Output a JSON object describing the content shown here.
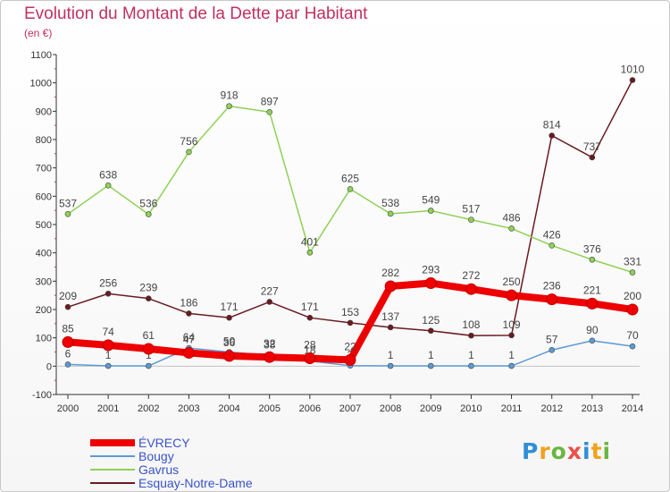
{
  "title": "Evolution du Montant de la Dette par Habitant",
  "subtitle": "(en €)",
  "logo_text": "Proxiti",
  "chart_data": {
    "type": "line",
    "x": [
      "2000",
      "2001",
      "2002",
      "2003",
      "2004",
      "2005",
      "2006",
      "2007",
      "2008",
      "2009",
      "2010",
      "2011",
      "2012",
      "2013",
      "2014"
    ],
    "ylim": [
      -100,
      1100
    ],
    "yticks": [
      -100,
      0,
      100,
      200,
      300,
      400,
      500,
      600,
      700,
      800,
      900,
      1000,
      1100
    ],
    "grid": false,
    "legend_position": "bottom-left",
    "series": [
      {
        "name": "Esquay-Notre-Dame",
        "color": "#6b1a1f",
        "width": 1.5,
        "values": [
          209,
          256,
          239,
          186,
          171,
          227,
          171,
          153,
          137,
          125,
          108,
          109,
          814,
          737,
          1010
        ],
        "labels": [
          "209",
          "256",
          "239",
          "186",
          "171",
          "227",
          "171",
          "153",
          "137",
          "125",
          "108",
          "109",
          "814",
          "737",
          "1010"
        ]
      },
      {
        "name": "Gavrus",
        "color": "#8fd156",
        "width": 1.5,
        "values": [
          537,
          638,
          536,
          756,
          918,
          897,
          401,
          625,
          538,
          549,
          517,
          486,
          426,
          376,
          331
        ],
        "labels": [
          "537",
          "638",
          "536",
          "756",
          "918",
          "897",
          "401",
          "625",
          "538",
          "549",
          "517",
          "486",
          "426",
          "376",
          "331"
        ]
      },
      {
        "name": "Bougy",
        "color": "#5b9bd5",
        "width": 1.5,
        "values": [
          6,
          1,
          1,
          64,
          50,
          38,
          18,
          2,
          1,
          1,
          1,
          1,
          57,
          90,
          70
        ],
        "labels": [
          "6",
          "1",
          "1",
          "64",
          "50",
          "38",
          "18",
          "2",
          "1",
          "1",
          "1",
          "1",
          "57",
          "90",
          "70"
        ]
      },
      {
        "name": "ÉVRECY",
        "color": "#ee0000",
        "width": 8,
        "values": [
          85,
          74,
          61,
          47,
          36,
          32,
          28,
          22,
          282,
          293,
          272,
          250,
          236,
          221,
          200
        ],
        "labels": [
          "85",
          "74",
          "61",
          "47",
          "36",
          "32",
          "28",
          "22",
          "282",
          "293",
          "272",
          "250",
          "236",
          "221",
          "200"
        ]
      }
    ],
    "legend": [
      "ÉVRECY",
      "Bougy",
      "Gavrus",
      "Esquay-Notre-Dame"
    ]
  }
}
